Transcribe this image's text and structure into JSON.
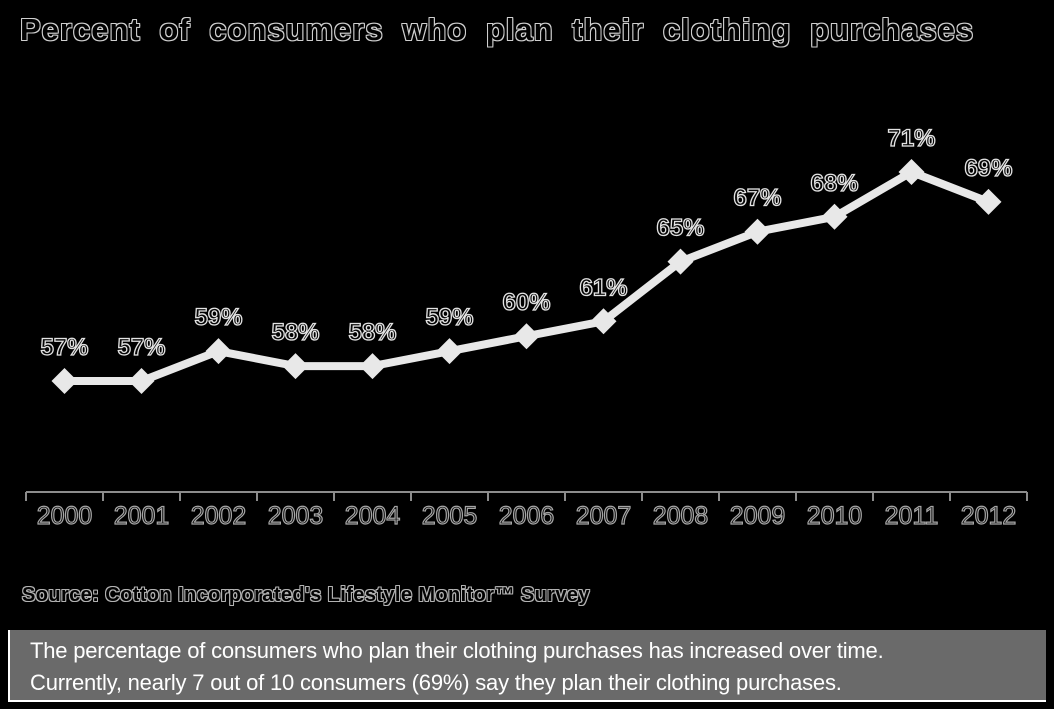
{
  "title": "Percent of consumers who plan their clothing purchases",
  "source": "Source: Cotton Incorporated's Lifestyle Monitor™ Survey",
  "caption": {
    "lines": [
      "The percentage of consumers who plan their clothing purchases has increased over time.",
      "Currently, nearly 7 out of 10 consumers (69%) say they plan their clothing purchases."
    ]
  },
  "colors": {
    "background": "#000000",
    "line": "#e8e8e8",
    "marker": "#e8e8e8",
    "axis": "#8c8c8c",
    "caption_bg": "#6a6a6a",
    "caption_text": "#ffffff",
    "outline_text": "#cfcfcf"
  },
  "chart_data": {
    "type": "line",
    "title": "Percent of consumers who plan their clothing purchases",
    "categories": [
      "2000",
      "2001",
      "2002",
      "2003",
      "2004",
      "2005",
      "2006",
      "2007",
      "2008",
      "2009",
      "2010",
      "2011",
      "2012"
    ],
    "values": [
      57,
      57,
      59,
      58,
      58,
      59,
      60,
      61,
      65,
      67,
      68,
      71,
      69
    ],
    "labels": [
      "57%",
      "57%",
      "59%",
      "58%",
      "58%",
      "59%",
      "60%",
      "61%",
      "65%",
      "67%",
      "68%",
      "71%",
      "69%"
    ],
    "xlabel": "",
    "ylabel": "",
    "ylim": [
      55,
      75
    ],
    "y_axis_visible": false,
    "gridlines": false,
    "legend": "none",
    "marker": "diamond",
    "line_color": "#e8e8e8",
    "axis_color": "#8c8c8c"
  }
}
